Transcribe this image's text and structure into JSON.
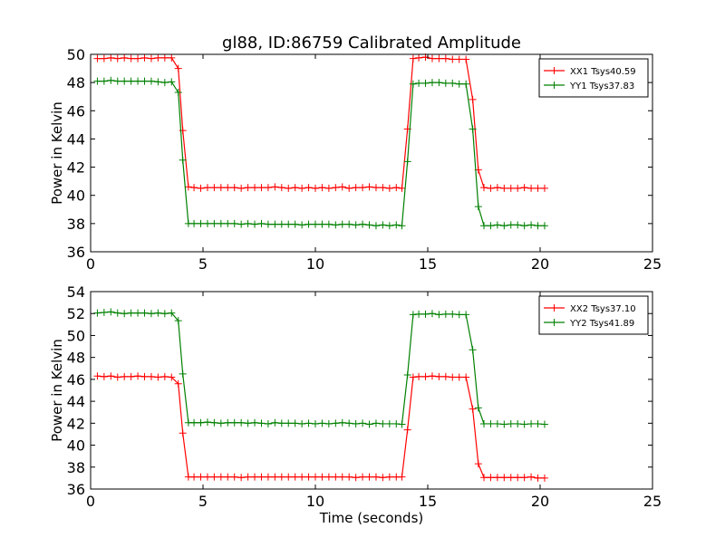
{
  "figure": {
    "title": "gl88, ID:86759 Calibrated Amplitude"
  },
  "chart_data": [
    {
      "type": "line",
      "title": "gl88, ID:86759 Calibrated Amplitude",
      "xlabel": "",
      "ylabel": "Power in Kelvin",
      "xlim": [
        0,
        25
      ],
      "ylim": [
        36,
        50
      ],
      "xticks": [
        0,
        5,
        10,
        15,
        20,
        25
      ],
      "yticks": [
        36,
        38,
        40,
        42,
        44,
        46,
        48,
        50
      ],
      "grid": false,
      "legend": "top-right",
      "x": [
        0.3,
        0.6,
        0.9,
        1.2,
        1.5,
        1.8,
        2.1,
        2.4,
        2.7,
        3.0,
        3.3,
        3.6,
        3.9,
        4.1,
        4.35,
        4.6,
        4.9,
        5.2,
        5.5,
        5.8,
        6.1,
        6.4,
        6.7,
        7.0,
        7.3,
        7.6,
        7.9,
        8.2,
        8.5,
        8.8,
        9.1,
        9.4,
        9.7,
        10.0,
        10.3,
        10.6,
        10.9,
        11.2,
        11.5,
        11.8,
        12.1,
        12.4,
        12.7,
        13.0,
        13.3,
        13.6,
        13.85,
        14.1,
        14.35,
        14.6,
        14.9,
        15.2,
        15.5,
        15.8,
        16.1,
        16.4,
        16.7,
        17.0,
        17.25,
        17.5,
        17.8,
        18.1,
        18.4,
        18.7,
        19.0,
        19.3,
        19.6,
        19.9,
        20.2
      ],
      "series": [
        {
          "name": "XX1 Tsys40.59",
          "color": "#ff0000",
          "values": [
            49.7,
            49.7,
            49.75,
            49.7,
            49.75,
            49.7,
            49.7,
            49.75,
            49.7,
            49.75,
            49.75,
            49.75,
            49.0,
            44.6,
            40.6,
            40.55,
            40.5,
            40.55,
            40.55,
            40.55,
            40.55,
            40.55,
            40.5,
            40.55,
            40.55,
            40.55,
            40.55,
            40.6,
            40.55,
            40.5,
            40.55,
            40.5,
            40.55,
            40.5,
            40.55,
            40.5,
            40.55,
            40.6,
            40.5,
            40.55,
            40.55,
            40.6,
            40.55,
            40.55,
            40.5,
            40.55,
            40.5,
            44.7,
            49.7,
            49.75,
            49.8,
            49.7,
            49.7,
            49.7,
            49.65,
            49.65,
            49.65,
            46.8,
            41.8,
            40.55,
            40.5,
            40.55,
            40.5,
            40.5,
            40.5,
            40.55,
            40.5,
            40.5,
            40.5
          ]
        },
        {
          "name": "YY1 Tsys37.83",
          "color": "#008000",
          "values": [
            48.1,
            48.1,
            48.15,
            48.1,
            48.1,
            48.1,
            48.1,
            48.1,
            48.1,
            48.05,
            48.0,
            48.05,
            47.3,
            42.5,
            38.0,
            38.0,
            38.0,
            38.0,
            38.0,
            38.0,
            38.0,
            38.0,
            37.95,
            38.0,
            37.95,
            38.0,
            37.95,
            37.95,
            37.95,
            37.95,
            37.95,
            37.9,
            37.95,
            37.95,
            37.95,
            37.95,
            37.9,
            37.95,
            37.95,
            37.9,
            37.95,
            37.9,
            37.85,
            37.9,
            37.85,
            37.9,
            37.85,
            42.4,
            47.9,
            47.95,
            47.95,
            48.0,
            48.0,
            47.95,
            47.95,
            47.9,
            47.9,
            44.7,
            39.2,
            37.85,
            37.85,
            37.9,
            37.85,
            37.9,
            37.9,
            37.85,
            37.9,
            37.85,
            37.85
          ]
        }
      ]
    },
    {
      "type": "line",
      "title": "",
      "xlabel": "Time (seconds)",
      "ylabel": "Power in Kelvin",
      "xlim": [
        0,
        25
      ],
      "ylim": [
        36,
        54
      ],
      "xticks": [
        0,
        5,
        10,
        15,
        20,
        25
      ],
      "yticks": [
        36,
        38,
        40,
        42,
        44,
        46,
        48,
        50,
        52,
        54
      ],
      "grid": false,
      "legend": "top-right",
      "x": [
        0.3,
        0.6,
        0.9,
        1.2,
        1.5,
        1.8,
        2.1,
        2.4,
        2.7,
        3.0,
        3.3,
        3.6,
        3.9,
        4.1,
        4.35,
        4.6,
        4.9,
        5.2,
        5.5,
        5.8,
        6.1,
        6.4,
        6.7,
        7.0,
        7.3,
        7.6,
        7.9,
        8.2,
        8.5,
        8.8,
        9.1,
        9.4,
        9.7,
        10.0,
        10.3,
        10.6,
        10.9,
        11.2,
        11.5,
        11.8,
        12.1,
        12.4,
        12.7,
        13.0,
        13.3,
        13.6,
        13.85,
        14.1,
        14.35,
        14.6,
        14.9,
        15.2,
        15.5,
        15.8,
        16.1,
        16.4,
        16.7,
        17.0,
        17.25,
        17.5,
        17.8,
        18.1,
        18.4,
        18.7,
        19.0,
        19.3,
        19.6,
        19.9,
        20.2
      ],
      "series": [
        {
          "name": "XX2 Tsys37.10",
          "color": "#ff0000",
          "values": [
            46.3,
            46.25,
            46.3,
            46.2,
            46.25,
            46.25,
            46.3,
            46.25,
            46.25,
            46.2,
            46.25,
            46.2,
            45.6,
            41.1,
            37.1,
            37.1,
            37.1,
            37.1,
            37.1,
            37.1,
            37.1,
            37.1,
            37.05,
            37.1,
            37.1,
            37.1,
            37.1,
            37.1,
            37.1,
            37.1,
            37.1,
            37.1,
            37.1,
            37.1,
            37.1,
            37.1,
            37.1,
            37.1,
            37.1,
            37.05,
            37.1,
            37.1,
            37.1,
            37.05,
            37.1,
            37.1,
            37.1,
            41.4,
            46.2,
            46.25,
            46.25,
            46.3,
            46.25,
            46.25,
            46.2,
            46.2,
            46.2,
            43.3,
            38.3,
            37.05,
            37.05,
            37.05,
            37.05,
            37.05,
            37.05,
            37.05,
            37.1,
            37.0,
            37.0
          ]
        },
        {
          "name": "YY2 Tsys41.89",
          "color": "#008000",
          "values": [
            52.05,
            52.1,
            52.15,
            52.05,
            52.0,
            52.05,
            52.05,
            52.05,
            52.0,
            52.05,
            52.0,
            52.05,
            51.35,
            46.5,
            42.05,
            42.05,
            42.05,
            42.1,
            42.05,
            42.0,
            42.05,
            42.05,
            42.05,
            42.0,
            42.05,
            42.0,
            41.95,
            42.05,
            42.0,
            42.0,
            42.0,
            41.95,
            42.0,
            41.95,
            42.0,
            41.95,
            42.0,
            42.05,
            42.0,
            41.95,
            42.0,
            41.9,
            42.0,
            41.95,
            41.95,
            41.95,
            41.9,
            46.4,
            51.9,
            51.95,
            51.95,
            52.0,
            51.9,
            51.95,
            51.95,
            51.9,
            51.9,
            48.7,
            43.4,
            41.95,
            41.95,
            41.95,
            41.9,
            41.95,
            41.95,
            41.9,
            41.95,
            41.95,
            41.9
          ]
        }
      ]
    }
  ]
}
